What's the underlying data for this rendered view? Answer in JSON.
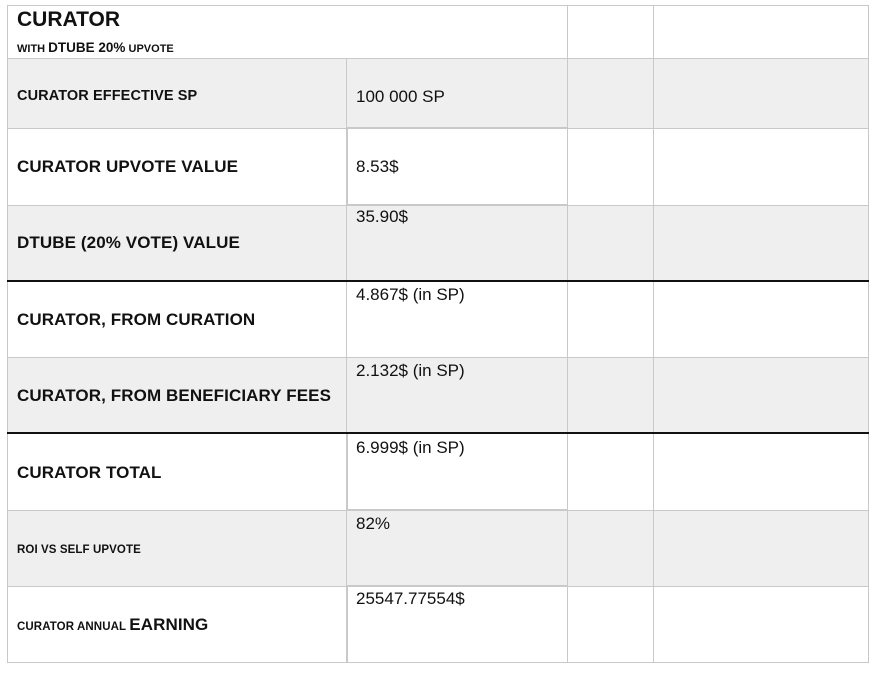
{
  "header": {
    "title": "CURATOR",
    "subtitle_prefix": "WITH",
    "subtitle_main": "DTUBE 20%",
    "subtitle_suffix": "UPVOTE"
  },
  "rows": [
    {
      "label": "CURATOR EFFECTIVE SP",
      "value": "100 000 SP"
    },
    {
      "label": "CURATOR UPVOTE VALUE",
      "value": "8.53$"
    },
    {
      "label": "DTUBE (20% VOTE) VALUE",
      "value": "35.90$"
    },
    {
      "label": "CURATOR, FROM CURATION",
      "value": "4.867$ (in SP)"
    },
    {
      "label": "CURATOR, FROM BENEFICIARY FEES",
      "value": "2.132$ (in SP)"
    },
    {
      "label": "CURATOR TOTAL",
      "value": "6.999$ (in SP)"
    },
    {
      "label": "ROI VS SELF UPVOTE",
      "value": "82%"
    },
    {
      "label_small": "CURATOR ANNUAL",
      "label_big": "EARNING",
      "value": "25547.77554$"
    }
  ]
}
